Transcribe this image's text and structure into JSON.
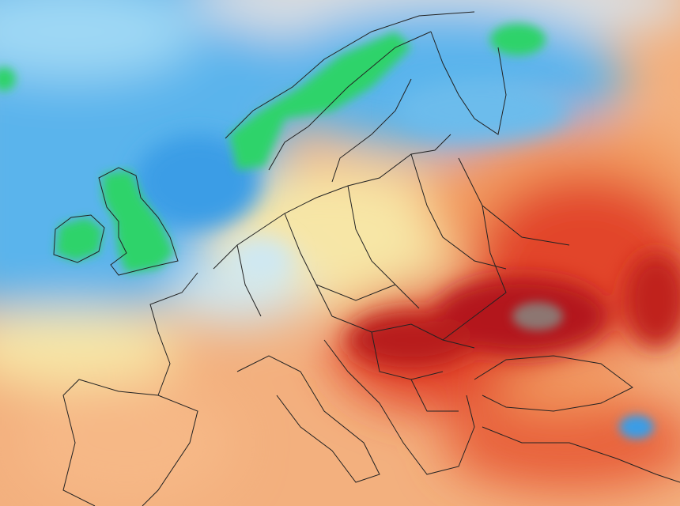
{
  "map": {
    "region": "Europe",
    "palette": {
      "sea_blue_light": "#9fd8f4",
      "sea_blue": "#5ab4ec",
      "blue_deep": "#2f8fe0",
      "gray_north": "#d9dee2",
      "green": "#2fd36a",
      "pale_yellow": "#f7e6a6",
      "orange_light": "#f6c08a",
      "orange": "#f29a5e",
      "red": "#e2442a",
      "dark_red": "#b3161a",
      "maroon_gray": "#8d7671",
      "border": "#222222"
    }
  }
}
